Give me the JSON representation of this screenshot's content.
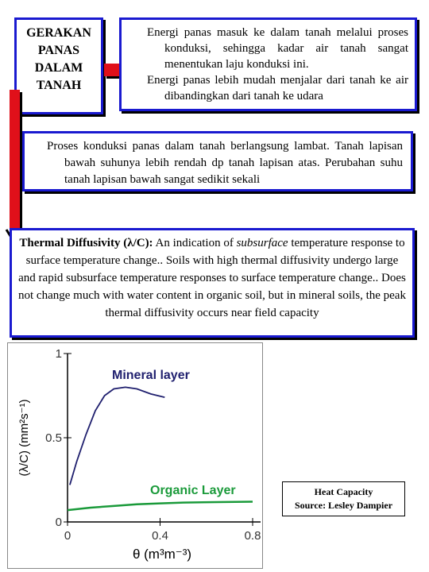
{
  "box_1": {
    "lines": [
      "GERAKAN",
      "PANAS",
      "DALAM",
      "TANAH"
    ]
  },
  "box_2": {
    "paragraphs": [
      "Energi panas masuk ke dalam tanah melalui proses konduksi, sehingga kadar air tanah sangat menentukan laju konduksi ini.",
      "Energi panas lebih mudah menjalar dari tanah ke air dibandingkan dari tanah ke udara"
    ]
  },
  "box_3": {
    "text": "Proses konduksi panas dalam tanah berlangsung lambat. Tanah lapisan bawah suhunya lebih rendah dp tanah lapisan atas. Perubahan suhu tanah lapisan bawah sangat sedikit sekali"
  },
  "box_4": {
    "lead": "Thermal Diffusivity (λ/C):",
    "text_1": "An indication of",
    "emphasis": "subsurface",
    "text_2": "temperature response to surface temperature change.. Soils with high thermal diffusivity undergo large and rapid subsurface temperature responses to surface temperature change.. Does not change much with water content in organic soil, but in mineral soils, the peak thermal diffusivity occurs near field capacity"
  },
  "figure": {
    "x_label": "θ (m³m⁻³)",
    "y_label": "(λ/C) (mm²s⁻¹)",
    "xlim": [
      0,
      0.8
    ],
    "ylim": [
      0,
      1
    ],
    "xticks": [
      0,
      0.4,
      0.8
    ],
    "yticks": [
      0,
      0.5,
      1
    ],
    "series": [
      {
        "name": "Mineral layer",
        "color": "#1f1f6e",
        "x": [
          0.01,
          0.04,
          0.08,
          0.12,
          0.16,
          0.2,
          0.25,
          0.3,
          0.36,
          0.42
        ],
        "values": [
          0.22,
          0.36,
          0.52,
          0.66,
          0.75,
          0.79,
          0.8,
          0.79,
          0.76,
          0.74
        ]
      },
      {
        "name": "Organic Layer",
        "color": "#1a9a3a",
        "x": [
          0,
          0.1,
          0.2,
          0.3,
          0.4,
          0.5,
          0.65,
          0.8
        ],
        "values": [
          0.07,
          0.085,
          0.095,
          0.105,
          0.11,
          0.115,
          0.118,
          0.12
        ]
      }
    ],
    "source_box": {
      "lines": [
        "Heat Capacity",
        "Source: Lesley Dampier"
      ]
    }
  }
}
